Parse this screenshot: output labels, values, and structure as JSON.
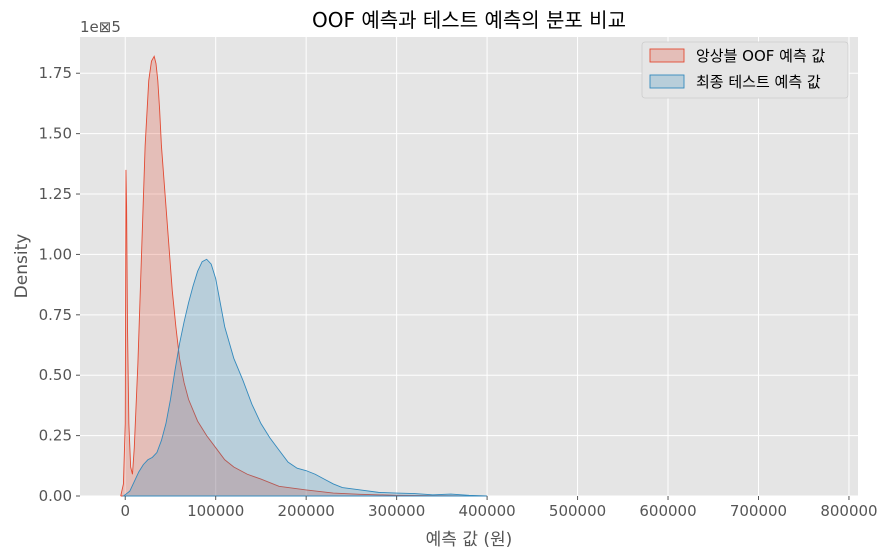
{
  "chart_data": {
    "type": "area",
    "title": "OOF 예측과 테스트 예측의 분포 비교",
    "xlabel": "예측 값 (원)",
    "ylabel": "Density",
    "y_offset_label": "1e⊠5",
    "xlim": [
      -50000,
      810000
    ],
    "ylim": [
      0,
      1.9
    ],
    "x_ticks": [
      0,
      100000,
      200000,
      300000,
      400000,
      500000,
      600000,
      700000,
      800000
    ],
    "x_tick_labels": [
      "0",
      "100000",
      "200000",
      "300000",
      "400000",
      "500000",
      "600000",
      "700000",
      "800000"
    ],
    "y_ticks": [
      0,
      0.25,
      0.5,
      0.75,
      1.0,
      1.25,
      1.5,
      1.75
    ],
    "y_tick_labels": [
      "0.00",
      "0.25",
      "0.50",
      "0.75",
      "1.00",
      "1.25",
      "1.50",
      "1.75"
    ],
    "grid": true,
    "legend_position": "top-right",
    "series": [
      {
        "name": "앙상블 OOF 예측 값",
        "color": "#e24a33",
        "x": [
          -5000,
          -2000,
          0,
          800,
          1500,
          2500,
          4000,
          6000,
          8000,
          10000,
          14000,
          18000,
          22000,
          26000,
          29000,
          32000,
          34000,
          36000,
          38000,
          40000,
          44000,
          48000,
          52000,
          56000,
          60000,
          65000,
          70000,
          80000,
          90000,
          100000,
          110000,
          120000,
          135000,
          150000,
          170000,
          200000,
          230000,
          260000,
          300000,
          350000,
          400000
        ],
        "y": [
          0.0,
          0.05,
          0.3,
          1.35,
          1.2,
          0.7,
          0.3,
          0.12,
          0.09,
          0.2,
          0.55,
          1.0,
          1.45,
          1.72,
          1.8,
          1.82,
          1.79,
          1.72,
          1.6,
          1.45,
          1.25,
          1.05,
          0.85,
          0.7,
          0.57,
          0.47,
          0.4,
          0.31,
          0.25,
          0.2,
          0.15,
          0.12,
          0.09,
          0.07,
          0.04,
          0.025,
          0.012,
          0.007,
          0.003,
          0.001,
          0.0
        ]
      },
      {
        "name": "최종 테스트 예측 값",
        "color": "#348abd",
        "x": [
          -2000,
          5000,
          10000,
          15000,
          20000,
          25000,
          30000,
          35000,
          40000,
          45000,
          50000,
          55000,
          60000,
          65000,
          70000,
          75000,
          80000,
          85000,
          90000,
          95000,
          100000,
          105000,
          110000,
          120000,
          130000,
          140000,
          150000,
          160000,
          170000,
          180000,
          190000,
          200000,
          210000,
          220000,
          230000,
          240000,
          260000,
          280000,
          300000,
          320000,
          340000,
          360000,
          380000,
          400000
        ],
        "y": [
          0.0,
          0.02,
          0.06,
          0.1,
          0.13,
          0.15,
          0.16,
          0.18,
          0.23,
          0.3,
          0.4,
          0.52,
          0.63,
          0.72,
          0.8,
          0.87,
          0.93,
          0.97,
          0.98,
          0.96,
          0.9,
          0.8,
          0.7,
          0.57,
          0.48,
          0.38,
          0.3,
          0.24,
          0.19,
          0.14,
          0.115,
          0.105,
          0.09,
          0.07,
          0.05,
          0.035,
          0.025,
          0.015,
          0.012,
          0.01,
          0.005,
          0.008,
          0.003,
          0.0
        ]
      }
    ]
  }
}
